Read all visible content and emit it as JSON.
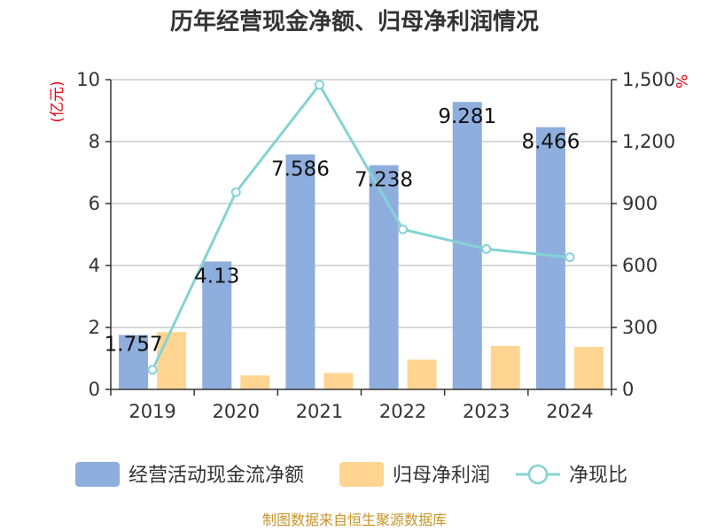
{
  "title": "历年经营现金净额、归母净利润情况",
  "source": "制图数据来自恒生聚源数据库",
  "colors": {
    "cash_flow": "#8eaedd",
    "net_profit": "#ffd591",
    "ratio": "#85d3d4",
    "unit_text": "#e60012",
    "source_text": "#c8952a"
  },
  "chart_data": {
    "type": "bar",
    "categories": [
      "2019",
      "2020",
      "2021",
      "2022",
      "2023",
      "2024"
    ],
    "left_axis": {
      "unit": "(亿元)",
      "ylim": [
        0,
        10
      ],
      "ticks": [
        "0",
        "2",
        "4",
        "6",
        "8",
        "10"
      ]
    },
    "right_axis": {
      "unit": "%",
      "ylim": [
        0,
        1500
      ],
      "ticks": [
        "0",
        "300",
        "600",
        "900",
        "1,200",
        "1,500"
      ]
    },
    "series": [
      {
        "name": "经营活动现金流净额",
        "type": "bar",
        "axis": "left",
        "values": [
          1.757,
          4.13,
          7.586,
          7.238,
          9.281,
          8.466
        ],
        "labels": [
          "1.757",
          "4.13",
          "7.586",
          "7.238",
          "9.281",
          "8.466"
        ]
      },
      {
        "name": "归母净利润",
        "type": "bar",
        "axis": "left",
        "values": [
          1.85,
          0.45,
          0.53,
          0.96,
          1.4,
          1.37
        ]
      },
      {
        "name": "净现比",
        "type": "line",
        "axis": "right",
        "values": [
          95,
          955,
          1475,
          775,
          680,
          640
        ]
      }
    ],
    "grid": true,
    "legend_position": "bottom"
  }
}
